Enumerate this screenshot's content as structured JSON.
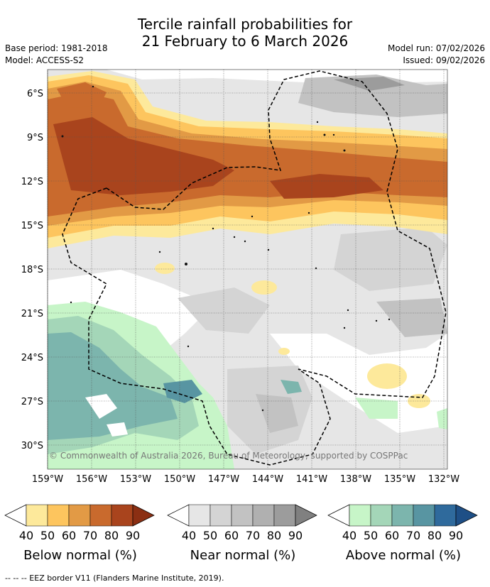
{
  "title_line1": "Tercile rainfall probabilities for",
  "title_line2": "21 February to 6 March 2026",
  "base_period": "Base period: 1981-2018",
  "model": "Model: ACCESS-S2",
  "model_run": "Model run: 07/02/2026",
  "issued": "Issued: 09/02/2026",
  "copyright": "© Commonwealth of Australia 2026, Bureau of Meteorology, supported by COSPPac",
  "footer": "--  --  -- EEZ border V11 (Flanders Marine Institute, 2019).",
  "map": {
    "lat_labels": [
      "6°S",
      "9°S",
      "12°S",
      "15°S",
      "18°S",
      "21°S",
      "24°S",
      "27°S",
      "30°S"
    ],
    "lon_labels": [
      "159°W",
      "156°W",
      "153°W",
      "150°W",
      "147°W",
      "144°W",
      "141°W",
      "138°W",
      "135°W",
      "132°W"
    ]
  },
  "legends": [
    {
      "title": "Below normal (%)",
      "ticks": [
        "40",
        "50",
        "60",
        "70",
        "80",
        "90"
      ],
      "colors": [
        "#fde99b",
        "#fdc55e",
        "#e29a45",
        "#c96a2d",
        "#a9441d",
        "#8b2f13"
      ]
    },
    {
      "title": "Near normal (%)",
      "ticks": [
        "40",
        "50",
        "60",
        "70",
        "80",
        "90"
      ],
      "colors": [
        "#e6e6e6",
        "#d4d4d4",
        "#c2c2c2",
        "#b0b0b0",
        "#9c9c9c",
        "#808080"
      ]
    },
    {
      "title": "Above normal (%)",
      "ticks": [
        "40",
        "50",
        "60",
        "70",
        "80",
        "90"
      ],
      "colors": [
        "#c7f5c8",
        "#a4d6b8",
        "#7cb5ad",
        "#5895a2",
        "#2f6a9c",
        "#1e4f86"
      ]
    }
  ]
}
